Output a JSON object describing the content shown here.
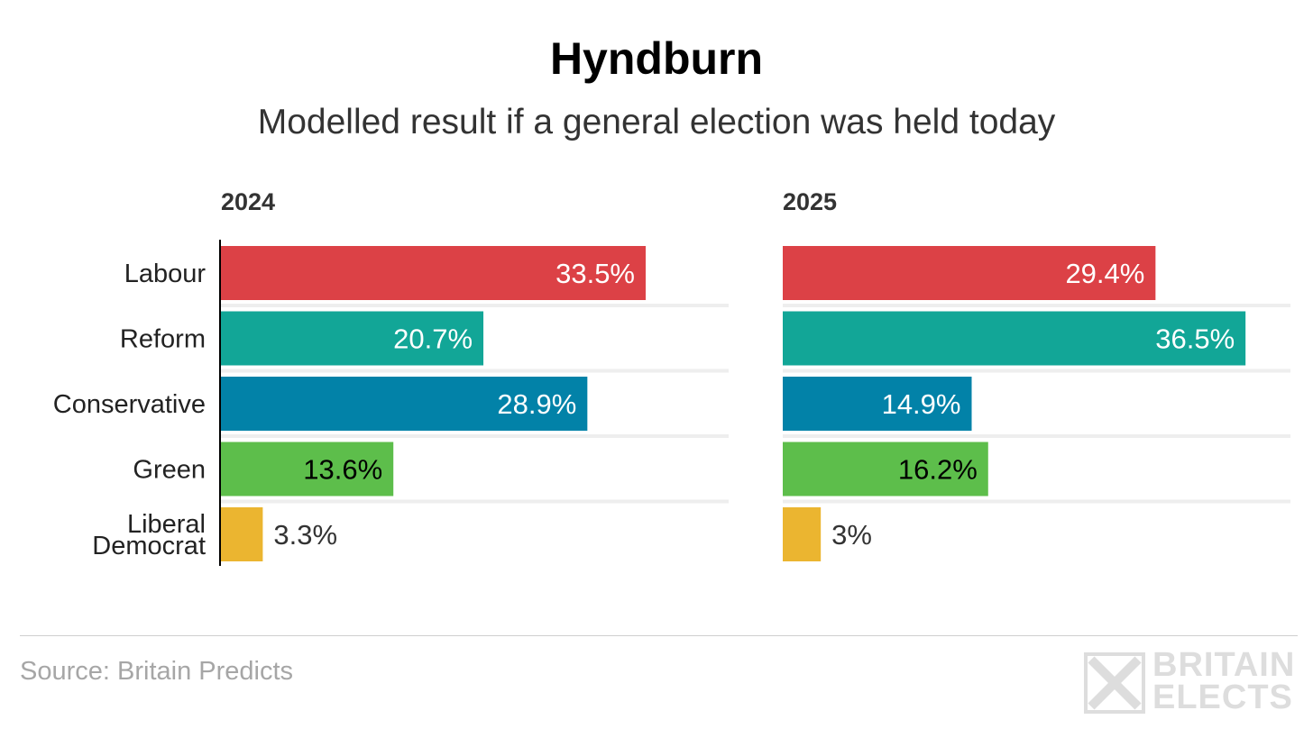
{
  "title": "Hyndburn",
  "subtitle": "Modelled result if a general election was held today",
  "source": "Source: Britain Predicts",
  "logo": {
    "line1": "BRITAIN",
    "line2": "ELECTS"
  },
  "chart_data": {
    "type": "bar",
    "orientation": "horizontal",
    "categories": [
      "Labour",
      "Reform",
      "Conservative",
      "Green",
      "Liberal Democrat"
    ],
    "category_labels": [
      [
        "Labour"
      ],
      [
        "Reform"
      ],
      [
        "Conservative"
      ],
      [
        "Green"
      ],
      [
        "Liberal",
        "Democrat"
      ]
    ],
    "colors": [
      "#dc4146",
      "#12a697",
      "#0282a8",
      "#5dbe4b",
      "#ebb530"
    ],
    "label_colors": [
      "#ffffff",
      "#ffffff",
      "#ffffff",
      "#000000",
      "#333333"
    ],
    "xlim": [
      0,
      40
    ],
    "grid": false,
    "panels": [
      {
        "title": "2024",
        "values": [
          33.5,
          20.7,
          28.9,
          13.6,
          3.3
        ],
        "labels": [
          "33.5%",
          "20.7%",
          "28.9%",
          "13.6%",
          "3.3%"
        ]
      },
      {
        "title": "2025",
        "values": [
          29.4,
          36.5,
          14.9,
          16.2,
          3.0
        ],
        "labels": [
          "29.4%",
          "36.5%",
          "14.9%",
          "16.2%",
          "3%"
        ]
      }
    ]
  }
}
